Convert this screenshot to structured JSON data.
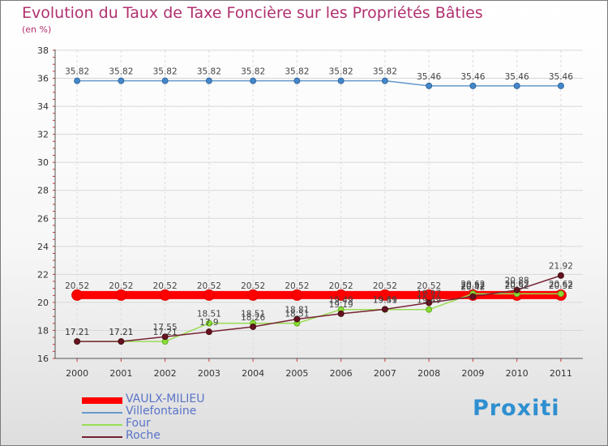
{
  "chart_data": {
    "type": "line",
    "title": "Evolution du Taux de Taxe Foncière sur les Propriétés Bâties",
    "ylabel": "(en %)",
    "x": [
      "2000",
      "2001",
      "2002",
      "2003",
      "2004",
      "2005",
      "2006",
      "2007",
      "2008",
      "2009",
      "2010",
      "2011"
    ],
    "ylim": [
      16,
      38
    ],
    "yticks": [
      "16",
      "18",
      "20",
      "22",
      "24",
      "26",
      "28",
      "30",
      "32",
      "34",
      "36",
      "38"
    ],
    "series": [
      {
        "name": "VAULX-MILIEU",
        "color": "#ff0000",
        "values": [
          20.52,
          20.52,
          20.52,
          20.52,
          20.52,
          20.52,
          20.52,
          20.52,
          20.52,
          20.52,
          20.52,
          20.52
        ],
        "labels": [
          "20.52",
          "20.52",
          "20.52",
          "20.52",
          "20.52",
          "20.52",
          "20.52",
          "20.52",
          "20.52",
          "20.52",
          "20.52",
          "20.52"
        ]
      },
      {
        "name": "Villefontaine",
        "color": "#6699cc",
        "values": [
          35.82,
          35.82,
          35.82,
          35.82,
          35.82,
          35.82,
          35.82,
          35.82,
          35.46,
          35.46,
          35.46,
          35.46
        ],
        "labels": [
          "35.82",
          "35.82",
          "35.82",
          "35.82",
          "35.82",
          "35.82",
          "35.82",
          "35.82",
          "35.46",
          "35.46",
          "35.46",
          "35.46"
        ]
      },
      {
        "name": "Four",
        "color": "#99dd55",
        "values": [
          17.21,
          17.21,
          17.21,
          18.51,
          18.51,
          18.51,
          19.49,
          19.49,
          19.49,
          20.62,
          20.62,
          20.62
        ],
        "labels": [
          "17.21",
          "17.21",
          "17.21",
          "18.51",
          "18.51",
          "18.51",
          "19.49",
          "19.49",
          "19.49",
          "20.62",
          "20.62",
          "20.62"
        ]
      },
      {
        "name": "Roche",
        "color": "#772233",
        "values": [
          17.21,
          17.21,
          17.55,
          17.9,
          18.26,
          18.81,
          19.19,
          19.51,
          19.97,
          20.42,
          20.88,
          21.92
        ],
        "labels": [
          "17.21",
          "17.21",
          "17.55",
          "17.9",
          "18.26",
          "18.81",
          "19.19",
          "19.51",
          "19.97",
          "20.42",
          "20.88",
          "21.92"
        ]
      }
    ]
  },
  "logo": {
    "text": "Proxiti"
  }
}
